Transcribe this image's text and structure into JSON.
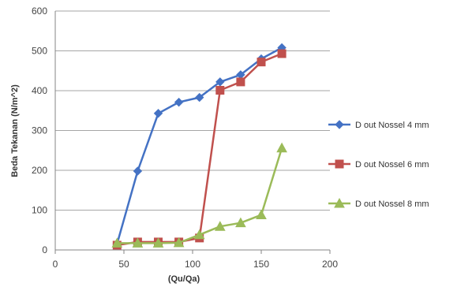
{
  "chart_data": {
    "type": "line",
    "title": "",
    "xlabel": "(Qu/Qa)",
    "ylabel": "Beda Tekanan (N/m^2)",
    "xlim": [
      0,
      200
    ],
    "ylim": [
      0,
      600
    ],
    "x_ticks": [
      "0",
      "50",
      "100",
      "150",
      "200"
    ],
    "y_ticks": [
      "0",
      "100",
      "200",
      "300",
      "400",
      "500",
      "600"
    ],
    "grid": "horizontal",
    "legend": "right",
    "series": [
      {
        "name": "D out Nossel 4 mm",
        "color": "#4472C4",
        "marker": "diamond",
        "points": [
          [
            45,
            15
          ],
          [
            60,
            198
          ],
          [
            75,
            343
          ],
          [
            90,
            371
          ],
          [
            105,
            383
          ],
          [
            120,
            422
          ],
          [
            135,
            440
          ],
          [
            150,
            480
          ],
          [
            165,
            508
          ]
        ]
      },
      {
        "name": "D out Nossel 6 mm",
        "color": "#C0504D",
        "marker": "square",
        "points": [
          [
            45,
            12
          ],
          [
            60,
            20
          ],
          [
            75,
            20
          ],
          [
            90,
            20
          ],
          [
            105,
            30
          ],
          [
            120,
            401
          ],
          [
            135,
            422
          ],
          [
            150,
            472
          ],
          [
            165,
            493
          ]
        ]
      },
      {
        "name": "D out Nossel 8 mm",
        "color": "#9BBB59",
        "marker": "triangle",
        "points": [
          [
            45,
            17
          ],
          [
            60,
            17
          ],
          [
            75,
            17
          ],
          [
            90,
            18
          ],
          [
            105,
            38
          ],
          [
            120,
            59
          ],
          [
            135,
            68
          ],
          [
            150,
            88
          ],
          [
            165,
            256
          ]
        ]
      }
    ]
  }
}
